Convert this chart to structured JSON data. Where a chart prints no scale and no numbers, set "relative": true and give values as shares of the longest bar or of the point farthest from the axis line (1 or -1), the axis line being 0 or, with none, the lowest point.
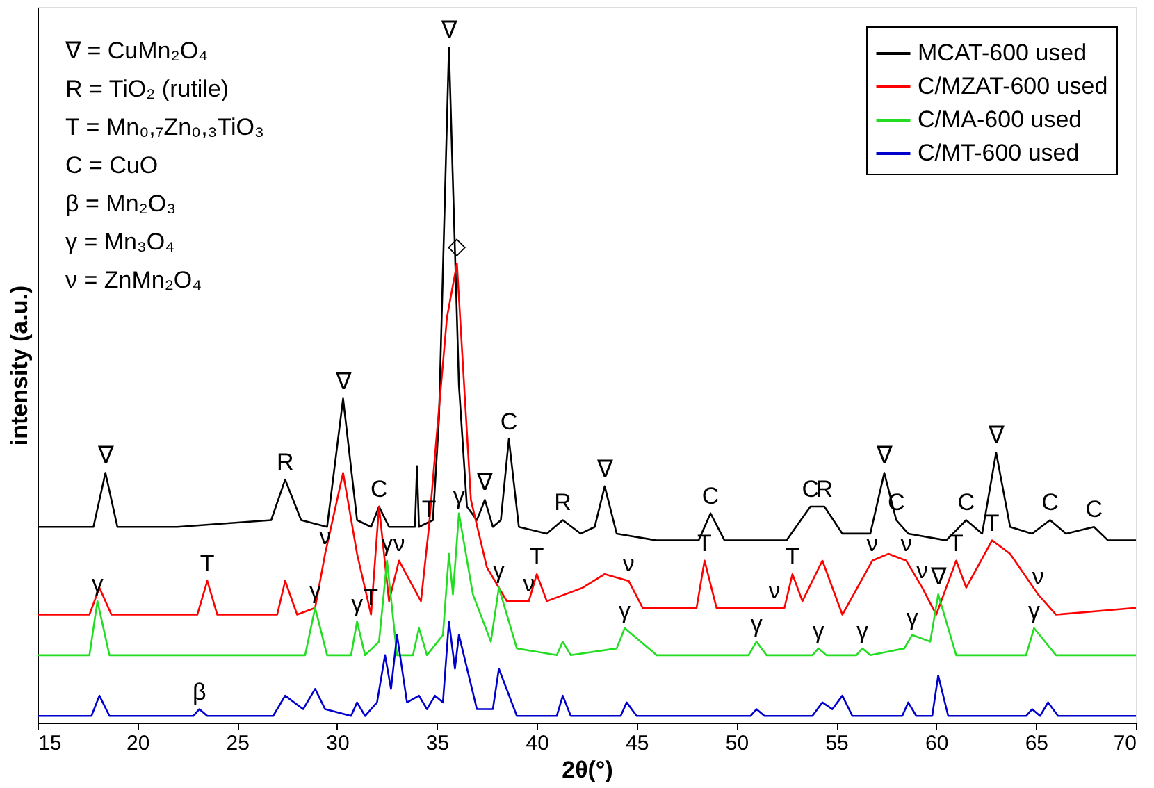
{
  "chart_data": {
    "type": "line",
    "relative": true,
    "xlabel": "2θ(°)",
    "ylabel": "intensity (a.u.)",
    "xlim": [
      15,
      70
    ],
    "xticks": [
      15,
      20,
      25,
      30,
      35,
      40,
      45,
      50,
      55,
      60,
      65,
      70
    ],
    "tick_labels": "x",
    "grid": false,
    "legend": "top right",
    "marker": "none",
    "line_style": "solid",
    "series": [
      {
        "name": "MCAT-600 used",
        "color": "#000000",
        "x": [
          15,
          17.8,
          18.4,
          19.0,
          22,
          26.7,
          27.4,
          28.2,
          29.5,
          30.3,
          31.0,
          31.7,
          32.1,
          32.6,
          33.5,
          33.9,
          34.0,
          34.1,
          34.8,
          35.1,
          35.6,
          36.1,
          36.5,
          37.0,
          37.4,
          37.8,
          38.2,
          38.6,
          39.1,
          40.5,
          41.3,
          42.2,
          42.9,
          43.4,
          44.0,
          46,
          48.1,
          48.7,
          49.4,
          52.5,
          53.7,
          54.4,
          55.3,
          56.7,
          57.4,
          58.0,
          58.6,
          60.5,
          61.5,
          62.3,
          63.0,
          63.7,
          64.8,
          65.7,
          66.5,
          67.9,
          68.6,
          70
        ],
        "values": [
          0.29,
          0.29,
          0.37,
          0.29,
          0.29,
          0.3,
          0.36,
          0.3,
          0.29,
          0.48,
          0.3,
          0.29,
          0.32,
          0.29,
          0.29,
          0.29,
          0.38,
          0.29,
          0.3,
          0.45,
          1.0,
          0.5,
          0.32,
          0.3,
          0.33,
          0.29,
          0.3,
          0.42,
          0.29,
          0.28,
          0.3,
          0.28,
          0.29,
          0.35,
          0.28,
          0.27,
          0.27,
          0.31,
          0.27,
          0.27,
          0.32,
          0.32,
          0.28,
          0.28,
          0.37,
          0.3,
          0.28,
          0.27,
          0.3,
          0.28,
          0.4,
          0.29,
          0.28,
          0.3,
          0.28,
          0.29,
          0.27,
          0.27
        ]
      },
      {
        "name": "C/MZAT-600 used",
        "color": "#ff0000",
        "x": [
          15,
          17.6,
          18.1,
          18.7,
          23.0,
          23.5,
          24.0,
          27.0,
          27.4,
          28.0,
          28.9,
          29.4,
          30.3,
          31.0,
          31.7,
          32.1,
          32.6,
          33.1,
          34.2,
          34.6,
          35.0,
          35.5,
          36.0,
          36.7,
          37.5,
          38.5,
          39.6,
          40.0,
          40.5,
          42.3,
          43.4,
          44.6,
          45.3,
          48.0,
          48.4,
          49.0,
          51.9,
          52.4,
          52.8,
          53.3,
          54.3,
          55.3,
          56.8,
          57.6,
          58.5,
          59.3,
          60.0,
          60.5,
          61.0,
          61.5,
          62.8,
          63.7,
          65.1,
          66,
          70
        ],
        "values": [
          0.16,
          0.16,
          0.2,
          0.16,
          0.16,
          0.21,
          0.16,
          0.16,
          0.21,
          0.16,
          0.17,
          0.25,
          0.37,
          0.25,
          0.16,
          0.32,
          0.18,
          0.24,
          0.18,
          0.29,
          0.43,
          0.6,
          0.68,
          0.33,
          0.23,
          0.18,
          0.18,
          0.22,
          0.18,
          0.2,
          0.22,
          0.21,
          0.17,
          0.17,
          0.24,
          0.17,
          0.17,
          0.17,
          0.22,
          0.18,
          0.24,
          0.16,
          0.24,
          0.25,
          0.24,
          0.2,
          0.16,
          0.2,
          0.24,
          0.2,
          0.27,
          0.25,
          0.19,
          0.16,
          0.17
        ]
      },
      {
        "name": "C/MA-600 used",
        "color": "#22dd22",
        "x": [
          15,
          17.6,
          18.0,
          18.6,
          20,
          28.4,
          28.9,
          29.5,
          30.7,
          31.0,
          31.4,
          32.1,
          32.5,
          33.0,
          33.8,
          34.1,
          34.5,
          35.3,
          35.6,
          35.8,
          36.1,
          36.8,
          37.7,
          38.1,
          39.0,
          41.0,
          41.3,
          41.7,
          44.0,
          44.4,
          46,
          50.6,
          51.0,
          51.5,
          53.8,
          54.1,
          54.5,
          56.0,
          56.3,
          56.7,
          58.4,
          58.8,
          59.7,
          60.1,
          61.0,
          64.5,
          64.9,
          66,
          70
        ],
        "values": [
          0.1,
          0.1,
          0.18,
          0.1,
          0.1,
          0.1,
          0.17,
          0.1,
          0.1,
          0.15,
          0.1,
          0.12,
          0.24,
          0.1,
          0.1,
          0.14,
          0.1,
          0.13,
          0.25,
          0.19,
          0.31,
          0.19,
          0.12,
          0.2,
          0.11,
          0.1,
          0.12,
          0.1,
          0.11,
          0.14,
          0.1,
          0.1,
          0.12,
          0.1,
          0.1,
          0.11,
          0.1,
          0.1,
          0.11,
          0.1,
          0.11,
          0.13,
          0.12,
          0.19,
          0.1,
          0.1,
          0.14,
          0.1,
          0.1
        ]
      },
      {
        "name": "C/MT-600 used",
        "color": "#0000cc",
        "x": [
          15,
          17.7,
          18.1,
          18.6,
          22.8,
          23.1,
          23.5,
          26.8,
          27.4,
          28.3,
          28.9,
          29.4,
          30.7,
          31.0,
          31.4,
          32.0,
          32.4,
          32.7,
          33.0,
          33.5,
          34.1,
          34.5,
          34.9,
          35.3,
          35.6,
          35.9,
          36.1,
          37.0,
          37.8,
          38.1,
          39.0,
          41.0,
          41.3,
          41.7,
          44.2,
          44.5,
          45,
          50.7,
          51.0,
          51.4,
          53.8,
          54.3,
          54.8,
          55.3,
          55.8,
          58.3,
          58.6,
          59.0,
          59.8,
          60.1,
          60.6,
          64.5,
          64.8,
          65.2,
          65.6,
          66.1,
          70
        ],
        "values": [
          0.01,
          0.01,
          0.04,
          0.01,
          0.01,
          0.02,
          0.01,
          0.01,
          0.04,
          0.02,
          0.05,
          0.02,
          0.01,
          0.03,
          0.01,
          0.03,
          0.1,
          0.05,
          0.13,
          0.03,
          0.04,
          0.02,
          0.04,
          0.03,
          0.15,
          0.08,
          0.13,
          0.02,
          0.02,
          0.08,
          0.01,
          0.01,
          0.04,
          0.01,
          0.01,
          0.03,
          0.01,
          0.01,
          0.02,
          0.01,
          0.01,
          0.03,
          0.02,
          0.04,
          0.01,
          0.01,
          0.03,
          0.01,
          0.01,
          0.07,
          0.01,
          0.01,
          0.02,
          0.01,
          0.03,
          0.01,
          0.01
        ]
      }
    ],
    "annotations": [
      "∇ = CuMn₂O₄",
      "R = TiO₂ (rutile)",
      "T = Mn₀,₇Zn₀,₃TiO₃",
      "C = CuO",
      "β = Mn₂O₃",
      "γ = Mn₃O₄",
      "ν = ZnMn₂O₄",
      {
        "text": "∇",
        "x": 18.4,
        "y": 0.37
      },
      {
        "text": "R",
        "x": 27.4,
        "y": 0.36
      },
      {
        "text": "∇",
        "x": 30.3,
        "y": 0.48
      },
      {
        "text": "C",
        "x": 32.1,
        "y": 0.32
      },
      {
        "text": "∇",
        "x": 35.6,
        "y": 1.0
      },
      {
        "text": "◇",
        "x": 36.0,
        "y": 0.68
      },
      {
        "text": "∇",
        "x": 37.4,
        "y": 0.33
      },
      {
        "text": "C",
        "x": 38.6,
        "y": 0.42
      },
      {
        "text": "R",
        "x": 41.3,
        "y": 0.3
      },
      {
        "text": "∇",
        "x": 43.4,
        "y": 0.35
      },
      {
        "text": "C",
        "x": 48.7,
        "y": 0.31
      },
      {
        "text": "C",
        "x": 53.7,
        "y": 0.32
      },
      {
        "text": "R",
        "x": 54.4,
        "y": 0.32
      },
      {
        "text": "∇",
        "x": 57.4,
        "y": 0.37
      },
      {
        "text": "C",
        "x": 58.0,
        "y": 0.3
      },
      {
        "text": "C",
        "x": 61.5,
        "y": 0.3
      },
      {
        "text": "∇",
        "x": 63.0,
        "y": 0.4
      },
      {
        "text": "C",
        "x": 65.7,
        "y": 0.3
      },
      {
        "text": "C",
        "x": 67.9,
        "y": 0.29
      },
      {
        "text": "T",
        "x": 23.5,
        "y": 0.21
      },
      {
        "text": "ν",
        "x": 29.4,
        "y": 0.25
      },
      {
        "text": "T",
        "x": 31.7,
        "y": 0.16
      },
      {
        "text": "ν",
        "x": 33.1,
        "y": 0.24
      },
      {
        "text": "T",
        "x": 34.6,
        "y": 0.29
      },
      {
        "text": "ν",
        "x": 39.6,
        "y": 0.18
      },
      {
        "text": "T",
        "x": 40.0,
        "y": 0.22
      },
      {
        "text": "ν",
        "x": 44.6,
        "y": 0.21
      },
      {
        "text": "T",
        "x": 48.4,
        "y": 0.24
      },
      {
        "text": "ν",
        "x": 51.9,
        "y": 0.17
      },
      {
        "text": "T",
        "x": 52.8,
        "y": 0.22
      },
      {
        "text": "ν",
        "x": 56.8,
        "y": 0.24
      },
      {
        "text": "ν",
        "x": 58.5,
        "y": 0.24
      },
      {
        "text": "ν",
        "x": 59.3,
        "y": 0.2
      },
      {
        "text": "T",
        "x": 61.0,
        "y": 0.24
      },
      {
        "text": "T",
        "x": 62.8,
        "y": 0.27
      },
      {
        "text": "ν",
        "x": 65.1,
        "y": 0.19
      },
      {
        "text": "γ",
        "x": 18.0,
        "y": 0.18
      },
      {
        "text": "γ",
        "x": 28.9,
        "y": 0.17
      },
      {
        "text": "γ",
        "x": 31.0,
        "y": 0.15
      },
      {
        "text": "γ",
        "x": 32.5,
        "y": 0.24
      },
      {
        "text": "γ",
        "x": 36.1,
        "y": 0.31
      },
      {
        "text": "γ",
        "x": 38.1,
        "y": 0.2
      },
      {
        "text": "γ",
        "x": 44.4,
        "y": 0.14
      },
      {
        "text": "γ",
        "x": 51.0,
        "y": 0.12
      },
      {
        "text": "γ",
        "x": 54.1,
        "y": 0.11
      },
      {
        "text": "γ",
        "x": 56.3,
        "y": 0.11
      },
      {
        "text": "γ",
        "x": 58.8,
        "y": 0.13
      },
      {
        "text": "∇",
        "x": 60.1,
        "y": 0.19
      },
      {
        "text": "γ",
        "x": 64.9,
        "y": 0.14
      },
      {
        "text": "β",
        "x": 23.1,
        "y": 0.02
      }
    ]
  }
}
